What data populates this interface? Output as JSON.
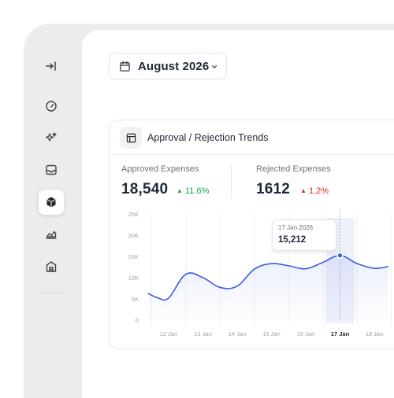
{
  "sidebar": {
    "items": [
      {
        "icon": "collapse-sidebar-icon"
      },
      {
        "icon": "dashboard-gauge-icon"
      },
      {
        "icon": "sparkles-icon"
      },
      {
        "icon": "inbox-icon"
      },
      {
        "icon": "package-cube-icon",
        "active": true
      },
      {
        "icon": "area-chart-icon"
      },
      {
        "icon": "building-icon"
      }
    ]
  },
  "header": {
    "date_picker": {
      "label": "August 2026",
      "icon": "calendar-icon"
    }
  },
  "card": {
    "title": "Approval / Rejection Trends",
    "icon": "table-icon",
    "stats": [
      {
        "label": "Approved Expenses",
        "value": "18,540",
        "change": "11.6%",
        "direction": "up",
        "color": "#16a34a"
      },
      {
        "label": "Rejected Expenses",
        "value": "1612",
        "change": "1.2%",
        "direction": "down",
        "color": "#dc2626"
      }
    ]
  },
  "tooltip": {
    "date": "17 Jan 2026",
    "value": "15,212"
  },
  "colors": {
    "line": "#3b5bdb",
    "highlight": "#eef0fb"
  },
  "chart_data": {
    "type": "area",
    "title": "",
    "xlabel": "",
    "ylabel": "",
    "y_ticks": [
      "0",
      "5K",
      "10K",
      "15K",
      "20K",
      "25K"
    ],
    "ylim": [
      0,
      25000
    ],
    "categories": [
      "12 Jan",
      "13 Jan",
      "14 Jan",
      "15 Jan",
      "16 Jan",
      "17 Jan",
      "18 Jan"
    ],
    "highlighted_category": "17 Jan",
    "grid": true,
    "series": [
      {
        "x": [
          11.4,
          11.7,
          12.0,
          12.5,
          13.0,
          13.5,
          14.0,
          14.5,
          15.0,
          15.5,
          16.0,
          16.5,
          17.0,
          17.5,
          18.0,
          18.4
        ],
        "values": [
          6300,
          5200,
          5200,
          10800,
          10000,
          7700,
          8000,
          12000,
          13300,
          12800,
          12100,
          13600,
          15212,
          13300,
          12200,
          12600
        ]
      }
    ]
  }
}
